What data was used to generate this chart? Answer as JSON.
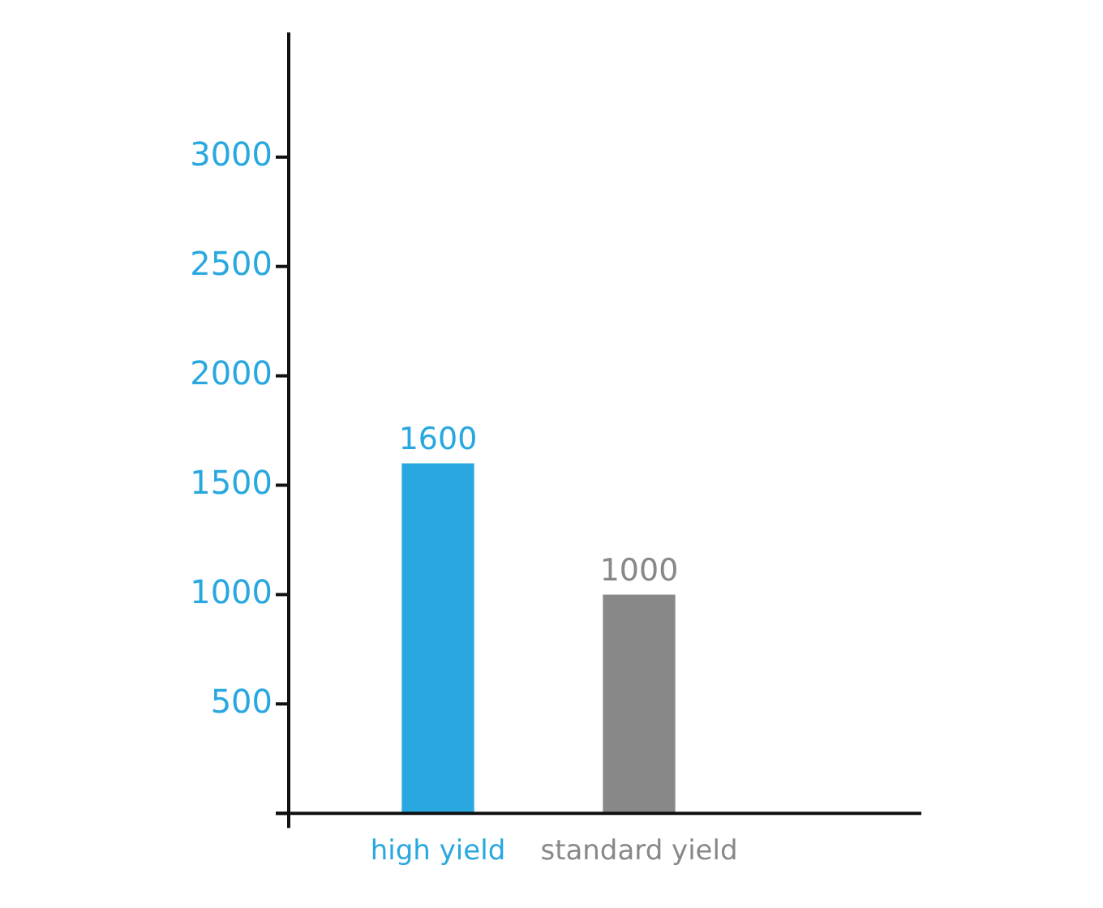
{
  "chart_data": {
    "type": "bar",
    "categories": [
      "high yield",
      "standard yield"
    ],
    "values": [
      1600,
      1000
    ],
    "colors": [
      "#29a8e0",
      "#888888"
    ],
    "ylim": [
      0,
      3570
    ],
    "yticks": [
      {
        "value": 0,
        "label": null
      },
      500,
      1000,
      1500,
      2000,
      2500,
      3000
    ],
    "data_labels": true,
    "grid": false,
    "legend": false
  }
}
